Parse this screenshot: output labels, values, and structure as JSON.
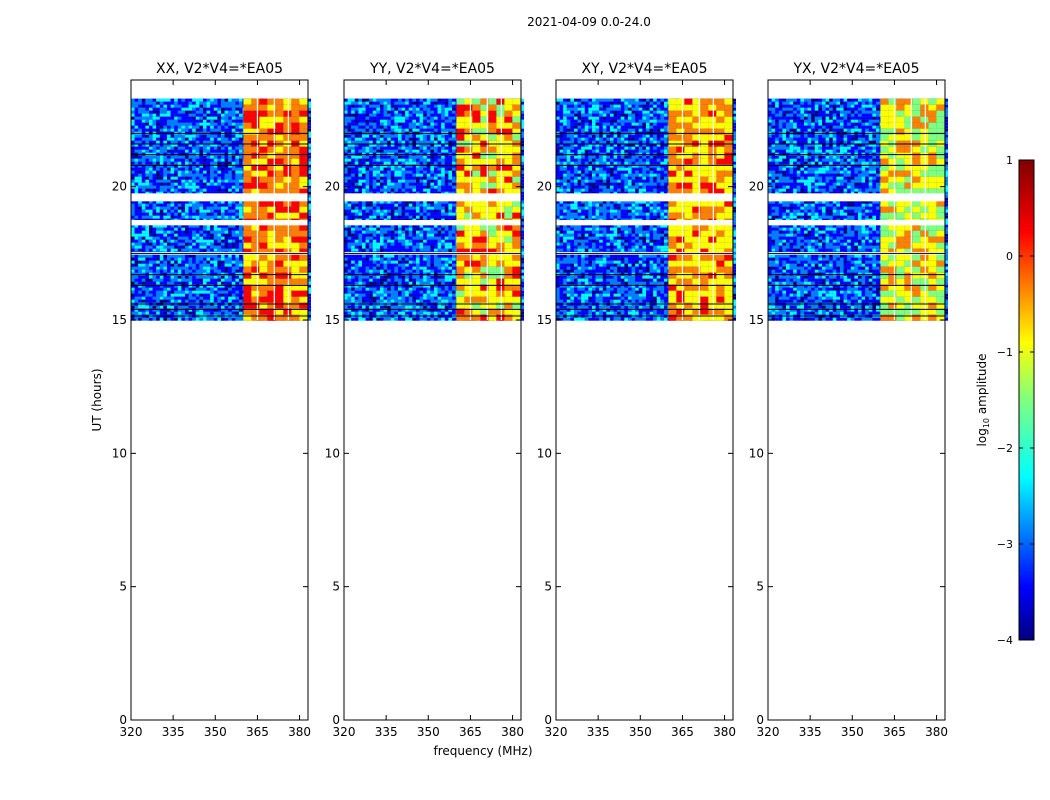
{
  "figure": {
    "suptitle": "2021-04-09 0.0-24.0",
    "ylabel": "UT (hours)",
    "xlabel": "frequency (MHz)"
  },
  "chart_data": {
    "type": "heatmap",
    "x_ticks": [
      320,
      335,
      350,
      365,
      380
    ],
    "y_ticks": [
      0,
      5,
      10,
      15,
      20
    ],
    "xlim": [
      320,
      383
    ],
    "ylim": [
      0,
      24
    ],
    "data_time_range_hours": [
      15,
      23.3
    ],
    "gaps_hours": [
      [
        17.45,
        17.55
      ],
      [
        18.55,
        18.75
      ],
      [
        19.45,
        19.75
      ]
    ],
    "strong_band_mhz": [
      360,
      380
    ],
    "panels": [
      {
        "title": "XX, V2*V4=*EA05",
        "band_start_mhz": 360,
        "band_end_mhz": 380
      },
      {
        "title": "YY, V2*V4=*EA05",
        "band_start_mhz": 360,
        "band_end_mhz": 380
      },
      {
        "title": "XY, V2*V4=*EA05",
        "band_start_mhz": 360,
        "band_end_mhz": 380
      },
      {
        "title": "YX, V2*V4=*EA05",
        "band_start_mhz": 360,
        "band_end_mhz": 380
      }
    ],
    "colorbar": {
      "label_main": "log",
      "label_sub": "10",
      "label_tail": " amplitude",
      "ticks": [
        1,
        0,
        -1,
        -2,
        -3,
        -4
      ],
      "range": [
        -4,
        1
      ],
      "colormap": "jet"
    }
  },
  "colors": {
    "jet": [
      "#00007f",
      "#0000ff",
      "#007fff",
      "#00ffff",
      "#7fff7f",
      "#ffff00",
      "#ff7f00",
      "#ff0000",
      "#7f0000"
    ]
  }
}
